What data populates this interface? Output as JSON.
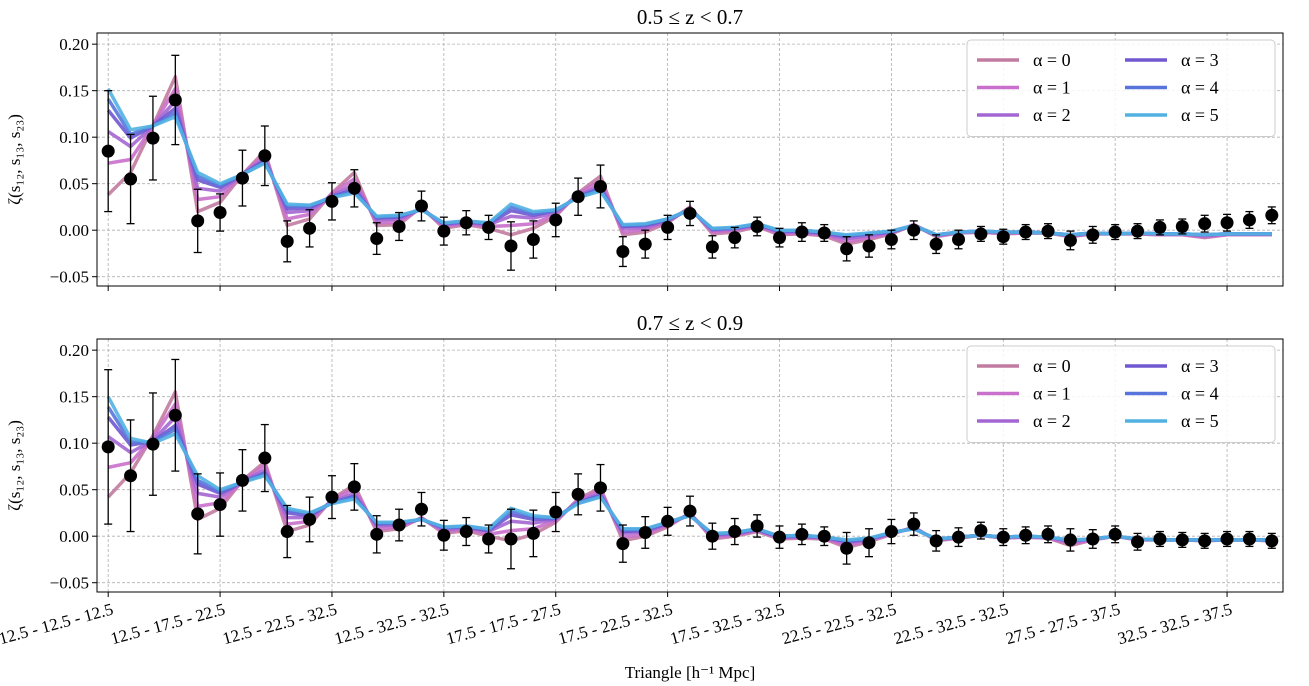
{
  "chart_data": [
    {
      "type": "line",
      "title": "0.5 ≤ z < 0.7",
      "ylabel": "ζ(s₁₂, s₁₃, s₂₃)",
      "xlim": [
        -0.5,
        52.5
      ],
      "ylim": [
        -0.06,
        0.212
      ],
      "yticks": [
        {
          "value": -0.05,
          "label": "−0.05"
        },
        {
          "value": 0,
          "label": "0.00"
        },
        {
          "value": 0.05,
          "label": "0.05"
        },
        {
          "value": 0.1,
          "label": "0.10"
        },
        {
          "value": 0.15,
          "label": "0.15"
        },
        {
          "value": 0.2,
          "label": "0.20"
        }
      ],
      "grid": true,
      "legend_loc": "upper right",
      "legend_ncol": 2,
      "series": [
        {
          "name": "α = 0",
          "color": "#c27ba0",
          "values": [
            0.038,
            0.062,
            0.112,
            0.165,
            0.02,
            0.03,
            0.06,
            0.085,
            0.005,
            0.012,
            0.04,
            0.062,
            0.005,
            0.006,
            0.025,
            0.002,
            0.006,
            0.002,
            -0.005,
            0.002,
            0.015,
            0.04,
            0.058,
            -0.005,
            -0.002,
            0.008,
            0.025,
            -0.004,
            -0.002,
            0.004,
            -0.005,
            -0.004,
            -0.006,
            -0.015,
            -0.01,
            -0.004,
            0.006,
            -0.007,
            -0.003,
            -0.002,
            -0.004,
            -0.003,
            -0.003,
            -0.007,
            -0.004,
            -0.004,
            -0.004,
            -0.005,
            -0.005,
            -0.008,
            -0.005,
            -0.005,
            -0.005
          ]
        },
        {
          "name": "α = 1",
          "color": "#c96fcc",
          "values": [
            0.072,
            0.076,
            0.112,
            0.152,
            0.033,
            0.036,
            0.06,
            0.081,
            0.012,
            0.017,
            0.039,
            0.055,
            0.008,
            0.009,
            0.024,
            0.004,
            0.007,
            0.004,
            0.005,
            0.007,
            0.017,
            0.039,
            0.053,
            -0.002,
            0.001,
            0.009,
            0.024,
            -0.002,
            0.0,
            0.005,
            -0.004,
            -0.003,
            -0.005,
            -0.012,
            -0.008,
            -0.003,
            0.006,
            -0.006,
            -0.003,
            -0.002,
            -0.003,
            -0.003,
            -0.003,
            -0.006,
            -0.004,
            -0.004,
            -0.004,
            -0.005,
            -0.005,
            -0.007,
            -0.005,
            -0.005,
            -0.005
          ]
        },
        {
          "name": "α = 2",
          "color": "#a466d2",
          "values": [
            0.106,
            0.09,
            0.112,
            0.139,
            0.045,
            0.042,
            0.06,
            0.077,
            0.019,
            0.021,
            0.037,
            0.049,
            0.011,
            0.012,
            0.023,
            0.006,
            0.008,
            0.006,
            0.015,
            0.013,
            0.019,
            0.037,
            0.048,
            0.002,
            0.003,
            0.01,
            0.023,
            0.0,
            0.001,
            0.006,
            -0.002,
            -0.002,
            -0.004,
            -0.009,
            -0.006,
            -0.002,
            0.005,
            -0.006,
            -0.002,
            -0.001,
            -0.003,
            -0.002,
            -0.003,
            -0.006,
            -0.003,
            -0.004,
            -0.003,
            -0.004,
            -0.004,
            -0.006,
            -0.004,
            -0.004,
            -0.004
          ]
        },
        {
          "name": "α = 3",
          "color": "#7058d0",
          "values": [
            0.129,
            0.099,
            0.112,
            0.131,
            0.054,
            0.046,
            0.06,
            0.075,
            0.023,
            0.024,
            0.036,
            0.044,
            0.013,
            0.014,
            0.023,
            0.007,
            0.009,
            0.007,
            0.021,
            0.016,
            0.021,
            0.036,
            0.045,
            0.004,
            0.005,
            0.011,
            0.023,
            0.001,
            0.002,
            0.006,
            -0.001,
            -0.001,
            -0.003,
            -0.007,
            -0.004,
            -0.002,
            0.005,
            -0.005,
            -0.002,
            -0.001,
            -0.002,
            -0.002,
            -0.003,
            -0.005,
            -0.003,
            -0.004,
            -0.003,
            -0.004,
            -0.004,
            -0.005,
            -0.004,
            -0.004,
            -0.004
          ]
        },
        {
          "name": "α = 4",
          "color": "#5874dc",
          "values": [
            0.141,
            0.103,
            0.112,
            0.126,
            0.058,
            0.048,
            0.06,
            0.073,
            0.026,
            0.026,
            0.036,
            0.042,
            0.014,
            0.015,
            0.022,
            0.007,
            0.01,
            0.007,
            0.025,
            0.018,
            0.021,
            0.036,
            0.044,
            0.005,
            0.006,
            0.012,
            0.022,
            0.001,
            0.002,
            0.007,
            -0.001,
            0.0,
            -0.002,
            -0.006,
            -0.004,
            -0.001,
            0.005,
            -0.005,
            -0.002,
            -0.001,
            -0.002,
            -0.002,
            -0.003,
            -0.005,
            -0.003,
            -0.004,
            -0.003,
            -0.004,
            -0.004,
            -0.005,
            -0.004,
            -0.004,
            -0.004
          ]
        },
        {
          "name": "α = 5",
          "color": "#52b1e2",
          "values": [
            0.152,
            0.108,
            0.112,
            0.122,
            0.062,
            0.05,
            0.06,
            0.072,
            0.028,
            0.027,
            0.035,
            0.04,
            0.015,
            0.016,
            0.022,
            0.008,
            0.01,
            0.008,
            0.028,
            0.02,
            0.022,
            0.035,
            0.042,
            0.006,
            0.007,
            0.012,
            0.022,
            0.002,
            0.003,
            0.007,
            0.0,
            0.0,
            -0.002,
            -0.005,
            -0.003,
            -0.001,
            0.005,
            -0.005,
            -0.002,
            -0.001,
            -0.002,
            -0.002,
            -0.003,
            -0.005,
            -0.003,
            -0.004,
            -0.003,
            -0.004,
            -0.004,
            -0.005,
            -0.004,
            -0.004,
            -0.004
          ]
        }
      ],
      "points": {
        "color": "#000000",
        "values": [
          0.085,
          0.055,
          0.099,
          0.14,
          0.01,
          0.019,
          0.056,
          0.08,
          -0.012,
          0.002,
          0.031,
          0.045,
          -0.009,
          0.004,
          0.026,
          -0.001,
          0.008,
          0.003,
          -0.017,
          -0.01,
          0.011,
          0.036,
          0.047,
          -0.023,
          -0.015,
          0.003,
          0.018,
          -0.018,
          -0.008,
          0.004,
          -0.008,
          -0.002,
          -0.003,
          -0.02,
          -0.017,
          -0.01,
          0.0,
          -0.015,
          -0.01,
          -0.004,
          -0.007,
          -0.002,
          -0.001,
          -0.011,
          -0.005,
          -0.002,
          -0.001,
          0.003,
          0.004,
          0.007,
          0.008,
          0.011,
          0.016
        ],
        "errors": [
          0.065,
          0.048,
          0.045,
          0.048,
          0.034,
          0.02,
          0.03,
          0.032,
          0.022,
          0.02,
          0.02,
          0.02,
          0.017,
          0.015,
          0.016,
          0.015,
          0.013,
          0.013,
          0.026,
          0.02,
          0.018,
          0.02,
          0.023,
          0.016,
          0.015,
          0.013,
          0.013,
          0.012,
          0.011,
          0.01,
          0.01,
          0.01,
          0.009,
          0.013,
          0.012,
          0.01,
          0.01,
          0.01,
          0.01,
          0.008,
          0.008,
          0.008,
          0.008,
          0.01,
          0.009,
          0.008,
          0.008,
          0.008,
          0.008,
          0.009,
          0.009,
          0.009,
          0.009
        ]
      }
    },
    {
      "type": "line",
      "title": "0.7 ≤ z < 0.9",
      "ylabel": "ζ(s₁₂, s₁₃, s₂₃)",
      "xlabel": "Triangle [h⁻¹ Mpc]",
      "categories": [
        "12.5 - 12.5 - 12.5",
        null,
        null,
        null,
        null,
        "12.5 - 17.5 - 22.5",
        null,
        null,
        null,
        null,
        "12.5 - 22.5 - 32.5",
        null,
        null,
        null,
        null,
        "12.5 - 32.5 - 32.5",
        null,
        null,
        null,
        null,
        "17.5 - 17.5 - 27.5",
        null,
        null,
        null,
        null,
        "17.5 - 22.5 - 32.5",
        null,
        null,
        null,
        null,
        "17.5 - 32.5 - 32.5",
        null,
        null,
        null,
        null,
        "22.5 - 22.5 - 32.5",
        null,
        null,
        null,
        null,
        "22.5 - 32.5 - 32.5",
        null,
        null,
        null,
        null,
        "27.5 - 27.5 - 37.5",
        null,
        null,
        null,
        null,
        "32.5 - 32.5 - 37.5",
        null,
        null
      ],
      "xlim": [
        -0.5,
        52.5
      ],
      "ylim": [
        -0.06,
        0.212
      ],
      "yticks": [
        {
          "value": -0.05,
          "label": "−0.05"
        },
        {
          "value": 0,
          "label": "0.00"
        },
        {
          "value": 0.05,
          "label": "0.05"
        },
        {
          "value": 0.1,
          "label": "0.10"
        },
        {
          "value": 0.15,
          "label": "0.15"
        },
        {
          "value": 0.2,
          "label": "0.20"
        }
      ],
      "grid": true,
      "legend_loc": "upper right",
      "legend_ncol": 2,
      "series": [
        {
          "name": "α = 0",
          "color": "#c27ba0",
          "values": [
            0.042,
            0.068,
            0.108,
            0.155,
            0.018,
            0.03,
            0.06,
            0.08,
            0.005,
            0.012,
            0.04,
            0.055,
            0.005,
            0.008,
            0.02,
            0.003,
            0.006,
            0.0,
            -0.005,
            0.002,
            0.015,
            0.04,
            0.052,
            -0.005,
            0.0,
            0.01,
            0.025,
            -0.003,
            0.0,
            0.005,
            -0.003,
            -0.002,
            -0.003,
            -0.012,
            -0.006,
            0.002,
            0.01,
            -0.005,
            -0.002,
            0.001,
            -0.002,
            -0.001,
            -0.002,
            -0.01,
            -0.004,
            0.0,
            -0.004,
            -0.004,
            -0.004,
            -0.005,
            -0.004,
            -0.004,
            -0.005
          ]
        },
        {
          "name": "α = 1",
          "color": "#c96fcc",
          "values": [
            0.074,
            0.079,
            0.106,
            0.142,
            0.032,
            0.036,
            0.059,
            0.076,
            0.013,
            0.016,
            0.039,
            0.051,
            0.008,
            0.01,
            0.019,
            0.005,
            0.008,
            0.002,
            0.006,
            0.008,
            0.017,
            0.039,
            0.049,
            -0.001,
            0.002,
            0.012,
            0.024,
            -0.001,
            0.001,
            0.006,
            -0.002,
            -0.001,
            -0.002,
            -0.01,
            -0.005,
            0.003,
            0.009,
            -0.004,
            -0.002,
            0.001,
            -0.002,
            -0.001,
            -0.002,
            -0.008,
            -0.004,
            0.0,
            -0.004,
            -0.004,
            -0.004,
            -0.005,
            -0.004,
            -0.004,
            -0.005
          ]
        },
        {
          "name": "α = 2",
          "color": "#a466d2",
          "values": [
            0.107,
            0.09,
            0.103,
            0.128,
            0.046,
            0.042,
            0.059,
            0.071,
            0.02,
            0.02,
            0.037,
            0.046,
            0.011,
            0.012,
            0.019,
            0.007,
            0.009,
            0.005,
            0.016,
            0.014,
            0.018,
            0.037,
            0.046,
            0.003,
            0.005,
            0.013,
            0.023,
            0.001,
            0.002,
            0.007,
            -0.001,
            0.0,
            -0.002,
            -0.007,
            -0.004,
            0.003,
            0.009,
            -0.004,
            -0.001,
            0.001,
            -0.001,
            -0.001,
            -0.001,
            -0.006,
            -0.003,
            0.0,
            -0.003,
            -0.004,
            -0.004,
            -0.004,
            -0.004,
            -0.004,
            -0.004
          ]
        },
        {
          "name": "α = 3",
          "color": "#7058d0",
          "values": [
            0.128,
            0.098,
            0.102,
            0.119,
            0.056,
            0.046,
            0.058,
            0.068,
            0.025,
            0.022,
            0.036,
            0.043,
            0.013,
            0.014,
            0.018,
            0.009,
            0.01,
            0.006,
            0.023,
            0.018,
            0.019,
            0.036,
            0.044,
            0.005,
            0.006,
            0.014,
            0.023,
            0.002,
            0.003,
            0.007,
            -0.001,
            0.0,
            -0.001,
            -0.006,
            -0.003,
            0.004,
            0.008,
            -0.003,
            -0.001,
            0.001,
            -0.001,
            0.0,
            -0.001,
            -0.005,
            -0.003,
            0.0,
            -0.003,
            -0.004,
            -0.004,
            -0.004,
            -0.004,
            -0.004,
            -0.004
          ]
        },
        {
          "name": "α = 4",
          "color": "#5874dc",
          "values": [
            0.139,
            0.101,
            0.101,
            0.115,
            0.06,
            0.048,
            0.058,
            0.067,
            0.028,
            0.024,
            0.036,
            0.042,
            0.014,
            0.014,
            0.018,
            0.009,
            0.011,
            0.007,
            0.027,
            0.02,
            0.02,
            0.036,
            0.043,
            0.007,
            0.007,
            0.015,
            0.022,
            0.002,
            0.004,
            0.008,
            0.0,
            0.001,
            -0.001,
            -0.005,
            -0.003,
            0.004,
            0.008,
            -0.003,
            -0.001,
            0.001,
            -0.001,
            0.0,
            -0.001,
            -0.005,
            -0.003,
            0.0,
            -0.003,
            -0.004,
            -0.004,
            -0.004,
            -0.004,
            -0.004,
            -0.004
          ]
        },
        {
          "name": "α = 5",
          "color": "#52b1e2",
          "values": [
            0.15,
            0.105,
            0.1,
            0.11,
            0.065,
            0.05,
            0.058,
            0.065,
            0.03,
            0.025,
            0.035,
            0.04,
            0.015,
            0.015,
            0.018,
            0.01,
            0.011,
            0.008,
            0.03,
            0.022,
            0.02,
            0.035,
            0.042,
            0.008,
            0.008,
            0.015,
            0.022,
            0.003,
            0.004,
            0.008,
            0.0,
            0.001,
            -0.001,
            -0.004,
            -0.002,
            0.004,
            0.008,
            -0.003,
            -0.001,
            0.001,
            -0.001,
            0.0,
            -0.001,
            -0.004,
            -0.003,
            0.0,
            -0.003,
            -0.004,
            -0.004,
            -0.004,
            -0.004,
            -0.004,
            -0.004
          ]
        }
      ],
      "points": {
        "color": "#000000",
        "values": [
          0.096,
          0.065,
          0.099,
          0.13,
          0.024,
          0.034,
          0.06,
          0.084,
          0.005,
          0.018,
          0.042,
          0.053,
          0.002,
          0.012,
          0.029,
          0.001,
          0.005,
          -0.003,
          -0.003,
          0.003,
          0.026,
          0.045,
          0.052,
          -0.008,
          0.004,
          0.016,
          0.027,
          0.0,
          0.005,
          0.011,
          -0.001,
          0.002,
          0.0,
          -0.013,
          -0.007,
          0.005,
          0.013,
          -0.005,
          -0.001,
          0.006,
          -0.001,
          0.001,
          0.002,
          -0.004,
          -0.003,
          0.002,
          -0.006,
          -0.003,
          -0.004,
          -0.005,
          -0.003,
          -0.003,
          -0.005
        ],
        "errors": [
          0.083,
          0.06,
          0.055,
          0.06,
          0.043,
          0.034,
          0.033,
          0.036,
          0.028,
          0.024,
          0.023,
          0.025,
          0.02,
          0.017,
          0.018,
          0.016,
          0.015,
          0.015,
          0.032,
          0.025,
          0.021,
          0.022,
          0.025,
          0.02,
          0.017,
          0.015,
          0.016,
          0.014,
          0.014,
          0.012,
          0.012,
          0.011,
          0.01,
          0.017,
          0.015,
          0.013,
          0.012,
          0.011,
          0.01,
          0.009,
          0.009,
          0.009,
          0.009,
          0.012,
          0.01,
          0.009,
          0.009,
          0.008,
          0.008,
          0.008,
          0.008,
          0.008,
          0.008
        ]
      }
    }
  ]
}
